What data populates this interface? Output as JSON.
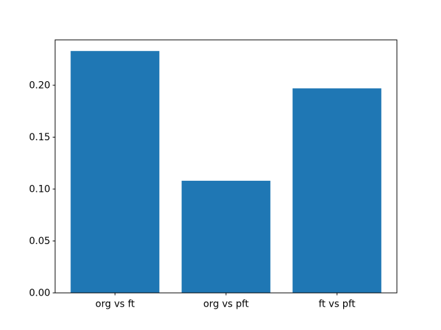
{
  "chart_data": {
    "type": "bar",
    "title": "",
    "xlabel": "",
    "ylabel": "",
    "categories": [
      "org vs ft",
      "org vs pft",
      "ft vs pft"
    ],
    "values": [
      0.233,
      0.108,
      0.197
    ],
    "bar_color": "#1f77b4",
    "bar_width": 0.8,
    "xlim": [
      -0.54,
      2.54
    ],
    "ylim": [
      0,
      0.2437
    ],
    "yticks": [
      0,
      0.05,
      0.1,
      0.15,
      0.2
    ],
    "ytick_labels": [
      "0.00",
      "0.05",
      "0.10",
      "0.15",
      "0.20"
    ],
    "grid": false,
    "legend": "none",
    "background_color": "#ffffff",
    "spine_color": "#000000",
    "text_color": "#000000"
  }
}
